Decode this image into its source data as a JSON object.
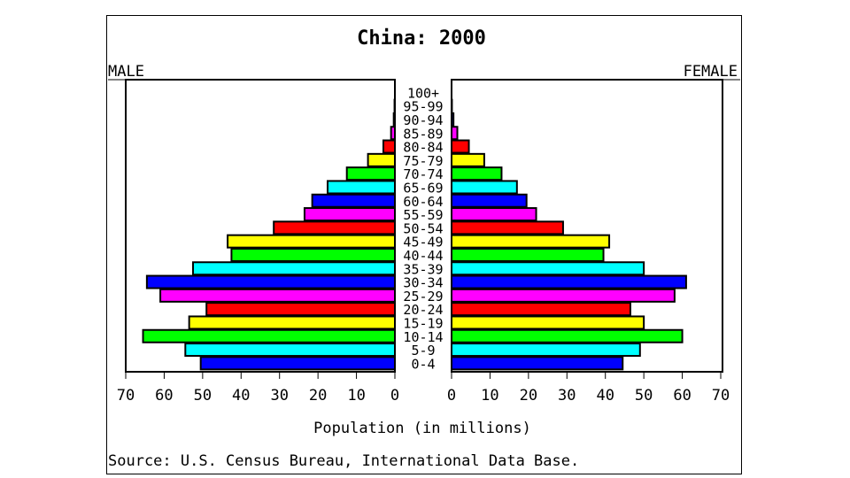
{
  "chart_data": {
    "type": "bar",
    "title": "China: 2000",
    "left_label": "MALE",
    "right_label": "FEMALE",
    "xlabel": "Population (in millions)",
    "source": "Source: U.S. Census Bureau, International Data Base.",
    "xlim": [
      0,
      70
    ],
    "ticks": [
      "70",
      "60",
      "50",
      "40",
      "30",
      "20",
      "10",
      "0"
    ],
    "ticks_right": [
      "0",
      "10",
      "20",
      "30",
      "40",
      "50",
      "60",
      "70"
    ],
    "tick_values": [
      70,
      60,
      50,
      40,
      30,
      20,
      10,
      0
    ],
    "tick_values_right": [
      0,
      10,
      20,
      30,
      40,
      50,
      60,
      70
    ],
    "categories": [
      "0-4",
      "5-9",
      "10-14",
      "15-19",
      "20-24",
      "25-29",
      "30-34",
      "35-39",
      "40-44",
      "45-49",
      "50-54",
      "55-59",
      "60-64",
      "65-69",
      "70-74",
      "75-79",
      "80-84",
      "85-89",
      "90-94",
      "95-99",
      "100+"
    ],
    "series": [
      {
        "name": "MALE",
        "values": [
          50.5,
          54.5,
          65.5,
          53.5,
          49,
          61,
          64.5,
          52.5,
          42.5,
          43.5,
          31.5,
          23.5,
          21.5,
          17.5,
          12.5,
          7,
          3,
          1,
          0.3,
          0.1,
          0
        ]
      },
      {
        "name": "FEMALE",
        "values": [
          44.5,
          49,
          60,
          50,
          46.5,
          58,
          61,
          50,
          39.5,
          41,
          29,
          22,
          19.5,
          17,
          13,
          8.5,
          4.5,
          1.5,
          0.5,
          0.1,
          0
        ]
      }
    ],
    "colors": [
      "#0000ff",
      "#00ffff",
      "#00ff00",
      "#ffff00",
      "#ff0000",
      "#ff00ff"
    ],
    "grid": false,
    "legend": "none"
  }
}
